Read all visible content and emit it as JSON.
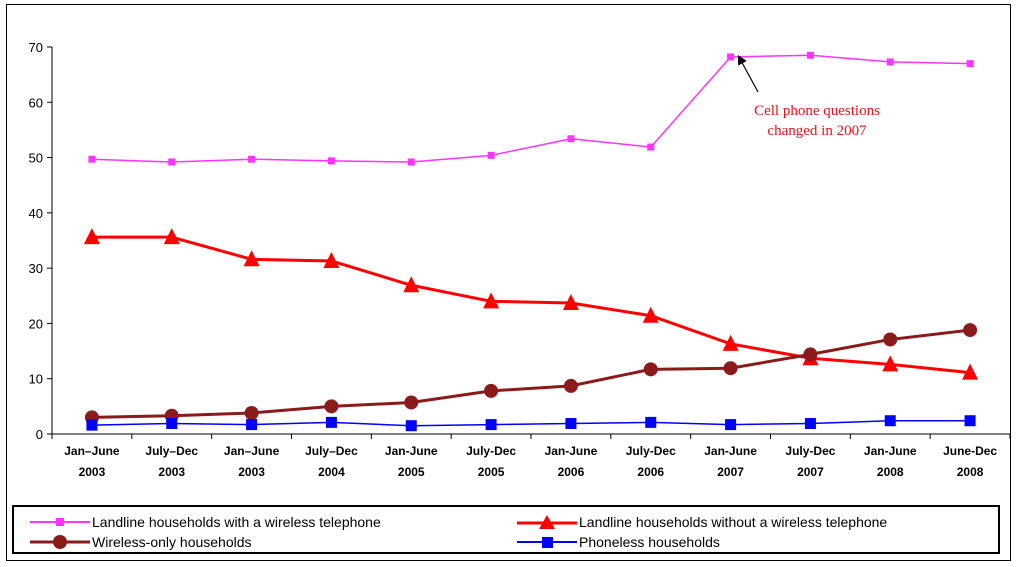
{
  "chart_data": {
    "type": "line",
    "categories": [
      [
        "Jan–June",
        "2003"
      ],
      [
        "July–Dec",
        "2003"
      ],
      [
        "Jan–June",
        "2003"
      ],
      [
        "July–Dec",
        "2004"
      ],
      [
        "Jan-June",
        "2005"
      ],
      [
        "July-Dec",
        "2005"
      ],
      [
        "Jan-June",
        "2006"
      ],
      [
        "July-Dec",
        "2006"
      ],
      [
        "Jan-June",
        "2007"
      ],
      [
        "July-Dec",
        "2007"
      ],
      [
        "Jan-June",
        "2008"
      ],
      [
        "June-Dec",
        "2008"
      ]
    ],
    "ylim": [
      0,
      70
    ],
    "yticks": [
      0,
      10,
      20,
      30,
      40,
      50,
      60,
      70
    ],
    "grid": false,
    "legend_position": "bottom",
    "series": [
      {
        "name": "Landline households with a wireless telephone",
        "color": "#ff33ff",
        "marker": "square",
        "values": [
          49.7,
          49.2,
          49.7,
          49.4,
          49.2,
          50.4,
          53.4,
          51.9,
          68.2,
          68.5,
          67.3,
          67.0
        ]
      },
      {
        "name": "Landline households without a wireless telephone",
        "color": "#ff0000",
        "marker": "triangle",
        "values": [
          35.6,
          35.6,
          31.6,
          31.3,
          26.9,
          24.0,
          23.7,
          21.4,
          16.3,
          13.7,
          12.6,
          11.1
        ]
      },
      {
        "name": "Wireless-only households",
        "color": "#8b1a1a",
        "marker": "circle",
        "values": [
          3.0,
          3.3,
          3.8,
          5.0,
          5.7,
          7.8,
          8.7,
          11.7,
          11.9,
          14.4,
          17.1,
          18.8
        ]
      },
      {
        "name": "Phoneless households",
        "color": "#0000ff",
        "marker": "square",
        "values": [
          1.6,
          1.9,
          1.7,
          2.1,
          1.5,
          1.7,
          1.9,
          2.1,
          1.7,
          1.9,
          2.4,
          2.4
        ]
      }
    ],
    "annotation": {
      "lines": [
        "Cell phone questions",
        "changed in 2007"
      ],
      "points_to": {
        "series": 0,
        "index": 8
      }
    }
  }
}
